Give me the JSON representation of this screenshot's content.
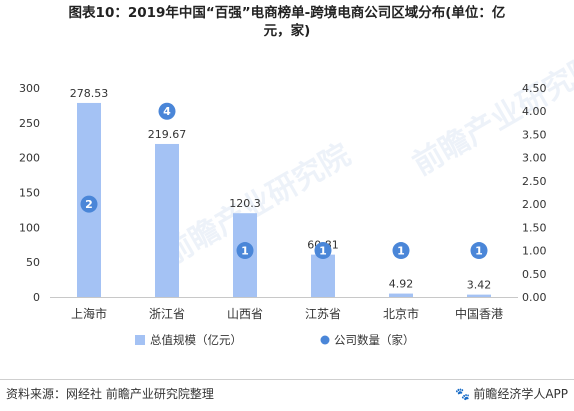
{
  "title_line1": "图表10：2019年中国“百强”电商榜单-跨境电商公司区域分布(单位：亿",
  "title_line2": "元，家)",
  "source": "资料来源：网经社 前瞻产业研究院整理",
  "app_credit": "前瞻经济学人APP",
  "watermarks": [
    "前瞻产业研究院",
    "前瞻产业研究院"
  ],
  "colors": {
    "bar": "#a4c2f4",
    "dot": "#4a86d8",
    "axis": "#c8c8c8",
    "text": "#333333"
  },
  "chart_data": {
    "type": "bar",
    "categories": [
      "上海市",
      "浙江省",
      "山西省",
      "江苏省",
      "北京市",
      "中国香港"
    ],
    "series": [
      {
        "name": "总值规模（亿元）",
        "axis": "left",
        "kind": "bar",
        "values": [
          278.53,
          219.67,
          120.3,
          60.81,
          4.92,
          3.42
        ],
        "labels": [
          "278.53",
          "219.67",
          "120.3",
          "60.81",
          "4.92",
          "3.42"
        ]
      },
      {
        "name": "公司数量（家）",
        "axis": "right",
        "kind": "scatter",
        "values": [
          2,
          4,
          1,
          1,
          1,
          1
        ],
        "labels": [
          "2",
          "4",
          "1",
          "1",
          "1",
          "1"
        ]
      }
    ],
    "y_left": {
      "range": [
        0,
        300
      ],
      "ticks": [
        "0",
        "50",
        "100",
        "150",
        "200",
        "250",
        "300"
      ]
    },
    "y_right": {
      "range": [
        0,
        4.5
      ],
      "ticks": [
        "0.00",
        "0.50",
        "1.00",
        "1.50",
        "2.00",
        "2.50",
        "3.00",
        "3.50",
        "4.00",
        "4.50"
      ]
    },
    "legend": "bottom",
    "grid": false
  }
}
